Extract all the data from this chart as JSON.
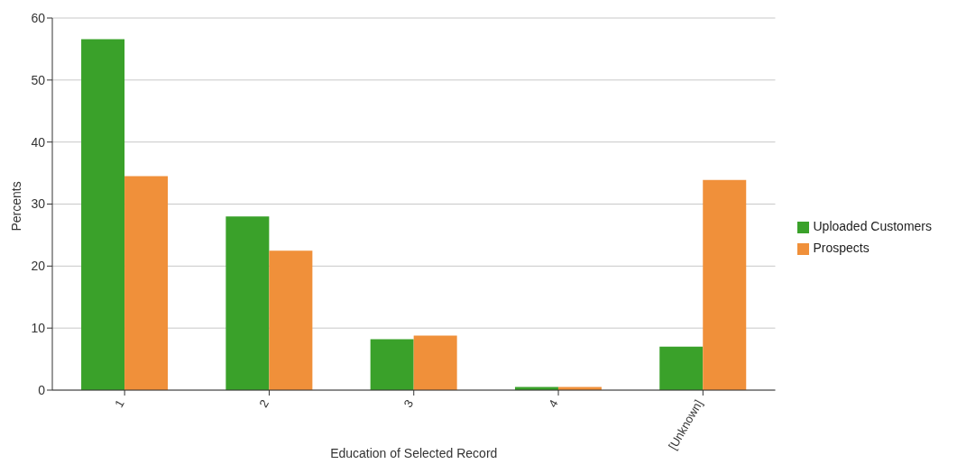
{
  "chart_data": {
    "type": "bar",
    "xlabel": "Education of Selected Record",
    "ylabel": "Percents",
    "categories": [
      "1",
      "2",
      "3",
      "4",
      "[Unknown]"
    ],
    "series": [
      {
        "name": "Uploaded Customers",
        "color": "#3aa12a",
        "values": [
          56.6,
          28.0,
          8.2,
          0.5,
          7.0
        ]
      },
      {
        "name": "Prospects",
        "color": "#f0903a",
        "values": [
          34.5,
          22.5,
          8.8,
          0.5,
          33.9
        ]
      }
    ],
    "ylim": [
      0,
      60
    ],
    "yticks": [
      0,
      10,
      20,
      30,
      40,
      50,
      60
    ],
    "grid": "y",
    "legend": "right"
  }
}
